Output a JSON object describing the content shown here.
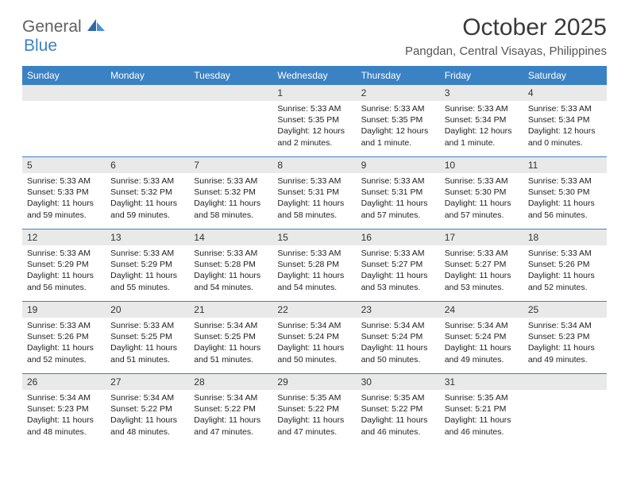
{
  "logo": {
    "word1": "General",
    "word2": "Blue"
  },
  "header": {
    "month_title": "October 2025",
    "location": "Pangdan, Central Visayas, Philippines"
  },
  "colors": {
    "header_bg": "#3b82c4",
    "header_text": "#ffffff",
    "daynum_bg": "#e9e9e9",
    "rule": "#3b82c4",
    "logo_grey": "#606060",
    "logo_blue": "#3b82c4",
    "text": "#222222"
  },
  "days_of_week": [
    "Sunday",
    "Monday",
    "Tuesday",
    "Wednesday",
    "Thursday",
    "Friday",
    "Saturday"
  ],
  "weeks": [
    [
      null,
      null,
      null,
      {
        "n": "1",
        "sunrise": "5:33 AM",
        "sunset": "5:35 PM",
        "daylight": "12 hours and 2 minutes."
      },
      {
        "n": "2",
        "sunrise": "5:33 AM",
        "sunset": "5:35 PM",
        "daylight": "12 hours and 1 minute."
      },
      {
        "n": "3",
        "sunrise": "5:33 AM",
        "sunset": "5:34 PM",
        "daylight": "12 hours and 1 minute."
      },
      {
        "n": "4",
        "sunrise": "5:33 AM",
        "sunset": "5:34 PM",
        "daylight": "12 hours and 0 minutes."
      }
    ],
    [
      {
        "n": "5",
        "sunrise": "5:33 AM",
        "sunset": "5:33 PM",
        "daylight": "11 hours and 59 minutes."
      },
      {
        "n": "6",
        "sunrise": "5:33 AM",
        "sunset": "5:32 PM",
        "daylight": "11 hours and 59 minutes."
      },
      {
        "n": "7",
        "sunrise": "5:33 AM",
        "sunset": "5:32 PM",
        "daylight": "11 hours and 58 minutes."
      },
      {
        "n": "8",
        "sunrise": "5:33 AM",
        "sunset": "5:31 PM",
        "daylight": "11 hours and 58 minutes."
      },
      {
        "n": "9",
        "sunrise": "5:33 AM",
        "sunset": "5:31 PM",
        "daylight": "11 hours and 57 minutes."
      },
      {
        "n": "10",
        "sunrise": "5:33 AM",
        "sunset": "5:30 PM",
        "daylight": "11 hours and 57 minutes."
      },
      {
        "n": "11",
        "sunrise": "5:33 AM",
        "sunset": "5:30 PM",
        "daylight": "11 hours and 56 minutes."
      }
    ],
    [
      {
        "n": "12",
        "sunrise": "5:33 AM",
        "sunset": "5:29 PM",
        "daylight": "11 hours and 56 minutes."
      },
      {
        "n": "13",
        "sunrise": "5:33 AM",
        "sunset": "5:29 PM",
        "daylight": "11 hours and 55 minutes."
      },
      {
        "n": "14",
        "sunrise": "5:33 AM",
        "sunset": "5:28 PM",
        "daylight": "11 hours and 54 minutes."
      },
      {
        "n": "15",
        "sunrise": "5:33 AM",
        "sunset": "5:28 PM",
        "daylight": "11 hours and 54 minutes."
      },
      {
        "n": "16",
        "sunrise": "5:33 AM",
        "sunset": "5:27 PM",
        "daylight": "11 hours and 53 minutes."
      },
      {
        "n": "17",
        "sunrise": "5:33 AM",
        "sunset": "5:27 PM",
        "daylight": "11 hours and 53 minutes."
      },
      {
        "n": "18",
        "sunrise": "5:33 AM",
        "sunset": "5:26 PM",
        "daylight": "11 hours and 52 minutes."
      }
    ],
    [
      {
        "n": "19",
        "sunrise": "5:33 AM",
        "sunset": "5:26 PM",
        "daylight": "11 hours and 52 minutes."
      },
      {
        "n": "20",
        "sunrise": "5:33 AM",
        "sunset": "5:25 PM",
        "daylight": "11 hours and 51 minutes."
      },
      {
        "n": "21",
        "sunrise": "5:34 AM",
        "sunset": "5:25 PM",
        "daylight": "11 hours and 51 minutes."
      },
      {
        "n": "22",
        "sunrise": "5:34 AM",
        "sunset": "5:24 PM",
        "daylight": "11 hours and 50 minutes."
      },
      {
        "n": "23",
        "sunrise": "5:34 AM",
        "sunset": "5:24 PM",
        "daylight": "11 hours and 50 minutes."
      },
      {
        "n": "24",
        "sunrise": "5:34 AM",
        "sunset": "5:24 PM",
        "daylight": "11 hours and 49 minutes."
      },
      {
        "n": "25",
        "sunrise": "5:34 AM",
        "sunset": "5:23 PM",
        "daylight": "11 hours and 49 minutes."
      }
    ],
    [
      {
        "n": "26",
        "sunrise": "5:34 AM",
        "sunset": "5:23 PM",
        "daylight": "11 hours and 48 minutes."
      },
      {
        "n": "27",
        "sunrise": "5:34 AM",
        "sunset": "5:22 PM",
        "daylight": "11 hours and 48 minutes."
      },
      {
        "n": "28",
        "sunrise": "5:34 AM",
        "sunset": "5:22 PM",
        "daylight": "11 hours and 47 minutes."
      },
      {
        "n": "29",
        "sunrise": "5:35 AM",
        "sunset": "5:22 PM",
        "daylight": "11 hours and 47 minutes."
      },
      {
        "n": "30",
        "sunrise": "5:35 AM",
        "sunset": "5:22 PM",
        "daylight": "11 hours and 46 minutes."
      },
      {
        "n": "31",
        "sunrise": "5:35 AM",
        "sunset": "5:21 PM",
        "daylight": "11 hours and 46 minutes."
      },
      null
    ]
  ],
  "labels": {
    "sunrise_prefix": "Sunrise: ",
    "sunset_prefix": "Sunset: ",
    "daylight_prefix": "Daylight: "
  }
}
